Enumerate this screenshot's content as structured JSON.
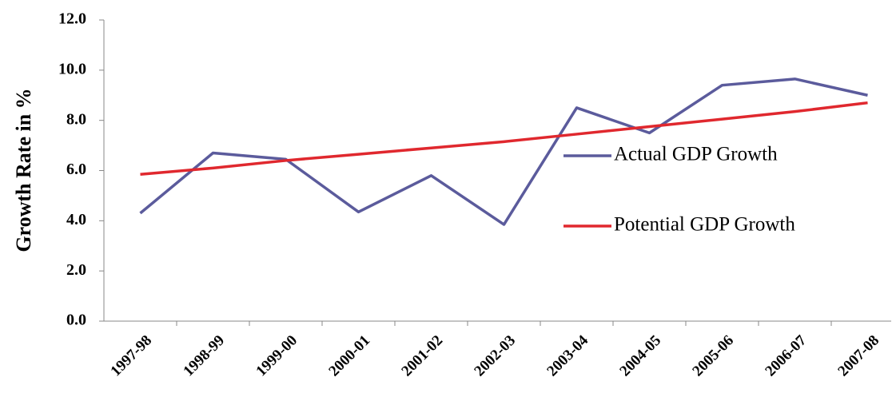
{
  "chart_data": {
    "type": "line",
    "y_label": "Growth Rate in %",
    "categories": [
      "1997-98",
      "1998-99",
      "1999-00",
      "2000-01",
      "2001-02",
      "2002-03",
      "2003-04",
      "2004-05",
      "2005-06",
      "2006-07",
      "2007-08"
    ],
    "series": [
      {
        "name": "Actual GDP Growth",
        "color": "#5b5b9c",
        "values": [
          4.3,
          6.7,
          6.45,
          4.35,
          5.8,
          3.85,
          8.5,
          7.5,
          9.4,
          9.65,
          9.0
        ]
      },
      {
        "name": "Potential GDP Growth",
        "color": "#e0282e",
        "values": [
          5.85,
          6.1,
          6.4,
          6.65,
          6.9,
          7.15,
          7.45,
          7.75,
          8.05,
          8.35,
          8.7
        ]
      }
    ],
    "ylim": [
      0,
      12
    ],
    "yticks": [
      {
        "value": 0,
        "label": "0.0"
      },
      {
        "value": 2,
        "label": "2.0"
      },
      {
        "value": 4,
        "label": "4.0"
      },
      {
        "value": 6,
        "label": "6.0"
      },
      {
        "value": 8,
        "label": "8.0"
      },
      {
        "value": 10,
        "label": "10.0"
      },
      {
        "value": 12,
        "label": "12.0"
      }
    ],
    "grid": false,
    "legend": "right"
  }
}
